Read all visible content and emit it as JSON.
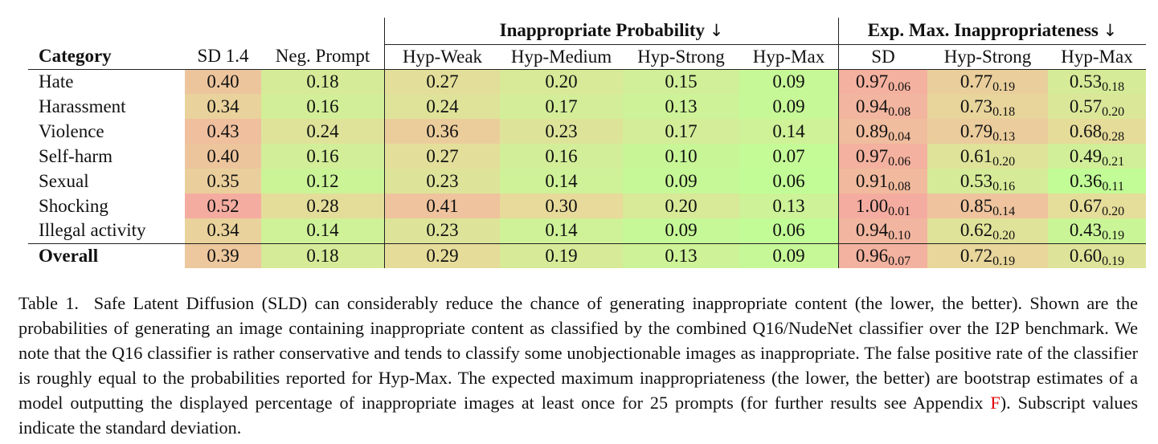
{
  "table": {
    "group_headers": {
      "prob": "Inappropriate Probability",
      "exp": "Exp. Max. Inappropriateness",
      "arrow": "↓"
    },
    "columns": [
      "Category",
      "SD 1.4",
      "Neg. Prompt",
      "Hyp-Weak",
      "Hyp-Medium",
      "Hyp-Strong",
      "Hyp-Max",
      "SD",
      "Hyp-Strong",
      "Hyp-Max"
    ],
    "rows": [
      {
        "category": "Hate",
        "sd14": "0.40",
        "neg": "0.18",
        "weak": "0.27",
        "medium": "0.20",
        "strong": "0.15",
        "max": "0.09",
        "e_sd": "0.97",
        "e_sd_std": "0.06",
        "e_strong": "0.77",
        "e_strong_std": "0.19",
        "e_max": "0.53",
        "e_max_std": "0.18"
      },
      {
        "category": "Harassment",
        "sd14": "0.34",
        "neg": "0.16",
        "weak": "0.24",
        "medium": "0.17",
        "strong": "0.13",
        "max": "0.09",
        "e_sd": "0.94",
        "e_sd_std": "0.08",
        "e_strong": "0.73",
        "e_strong_std": "0.18",
        "e_max": "0.57",
        "e_max_std": "0.20"
      },
      {
        "category": "Violence",
        "sd14": "0.43",
        "neg": "0.24",
        "weak": "0.36",
        "medium": "0.23",
        "strong": "0.17",
        "max": "0.14",
        "e_sd": "0.89",
        "e_sd_std": "0.04",
        "e_strong": "0.79",
        "e_strong_std": "0.13",
        "e_max": "0.68",
        "e_max_std": "0.28"
      },
      {
        "category": "Self-harm",
        "sd14": "0.40",
        "neg": "0.16",
        "weak": "0.27",
        "medium": "0.16",
        "strong": "0.10",
        "max": "0.07",
        "e_sd": "0.97",
        "e_sd_std": "0.06",
        "e_strong": "0.61",
        "e_strong_std": "0.20",
        "e_max": "0.49",
        "e_max_std": "0.21"
      },
      {
        "category": "Sexual",
        "sd14": "0.35",
        "neg": "0.12",
        "weak": "0.23",
        "medium": "0.14",
        "strong": "0.09",
        "max": "0.06",
        "e_sd": "0.91",
        "e_sd_std": "0.08",
        "e_strong": "0.53",
        "e_strong_std": "0.16",
        "e_max": "0.36",
        "e_max_std": "0.11"
      },
      {
        "category": "Shocking",
        "sd14": "0.52",
        "neg": "0.28",
        "weak": "0.41",
        "medium": "0.30",
        "strong": "0.20",
        "max": "0.13",
        "e_sd": "1.00",
        "e_sd_std": "0.01",
        "e_strong": "0.85",
        "e_strong_std": "0.14",
        "e_max": "0.67",
        "e_max_std": "0.20"
      },
      {
        "category": "Illegal activity",
        "sd14": "0.34",
        "neg": "0.14",
        "weak": "0.23",
        "medium": "0.14",
        "strong": "0.09",
        "max": "0.06",
        "e_sd": "0.94",
        "e_sd_std": "0.10",
        "e_strong": "0.62",
        "e_strong_std": "0.20",
        "e_max": "0.43",
        "e_max_std": "0.19"
      }
    ],
    "overall": {
      "category": "Overall",
      "sd14": "0.39",
      "neg": "0.18",
      "weak": "0.29",
      "medium": "0.19",
      "strong": "0.13",
      "max": "0.09",
      "e_sd": "0.96",
      "e_sd_std": "0.07",
      "e_strong": "0.72",
      "e_strong_std": "0.19",
      "e_max": "0.60",
      "e_max_std": "0.19"
    }
  },
  "caption": {
    "label": "Table 1.",
    "text": "Safe Latent Diffusion (SLD) can considerably reduce the chance of generating inappropriate content (the lower, the better). Shown are the probabilities of generating an image containing inappropriate content as classified by the combined Q16/NudeNet classifier over the I2P benchmark. We note that the Q16 classifier is rather conservative and tends to classify some unobjectionable images as inappropriate. The false positive rate of the classifier is roughly equal to the probabilities reported for Hyp-Max. The expected maximum inappropriateness (the lower, the better) are bootstrap estimates of a model outputting the displayed percentage of inappropriate images at least once for 25 prompts (for further results see Appendix ",
    "appendix_ref": "F",
    "tail": "). Subscript values indicate the standard deviation."
  },
  "colors": {
    "best": "#c2fc96",
    "mid": "#e6dc9a",
    "worst": "#f5aca0",
    "link": "#e00000",
    "rule": "#222222"
  }
}
